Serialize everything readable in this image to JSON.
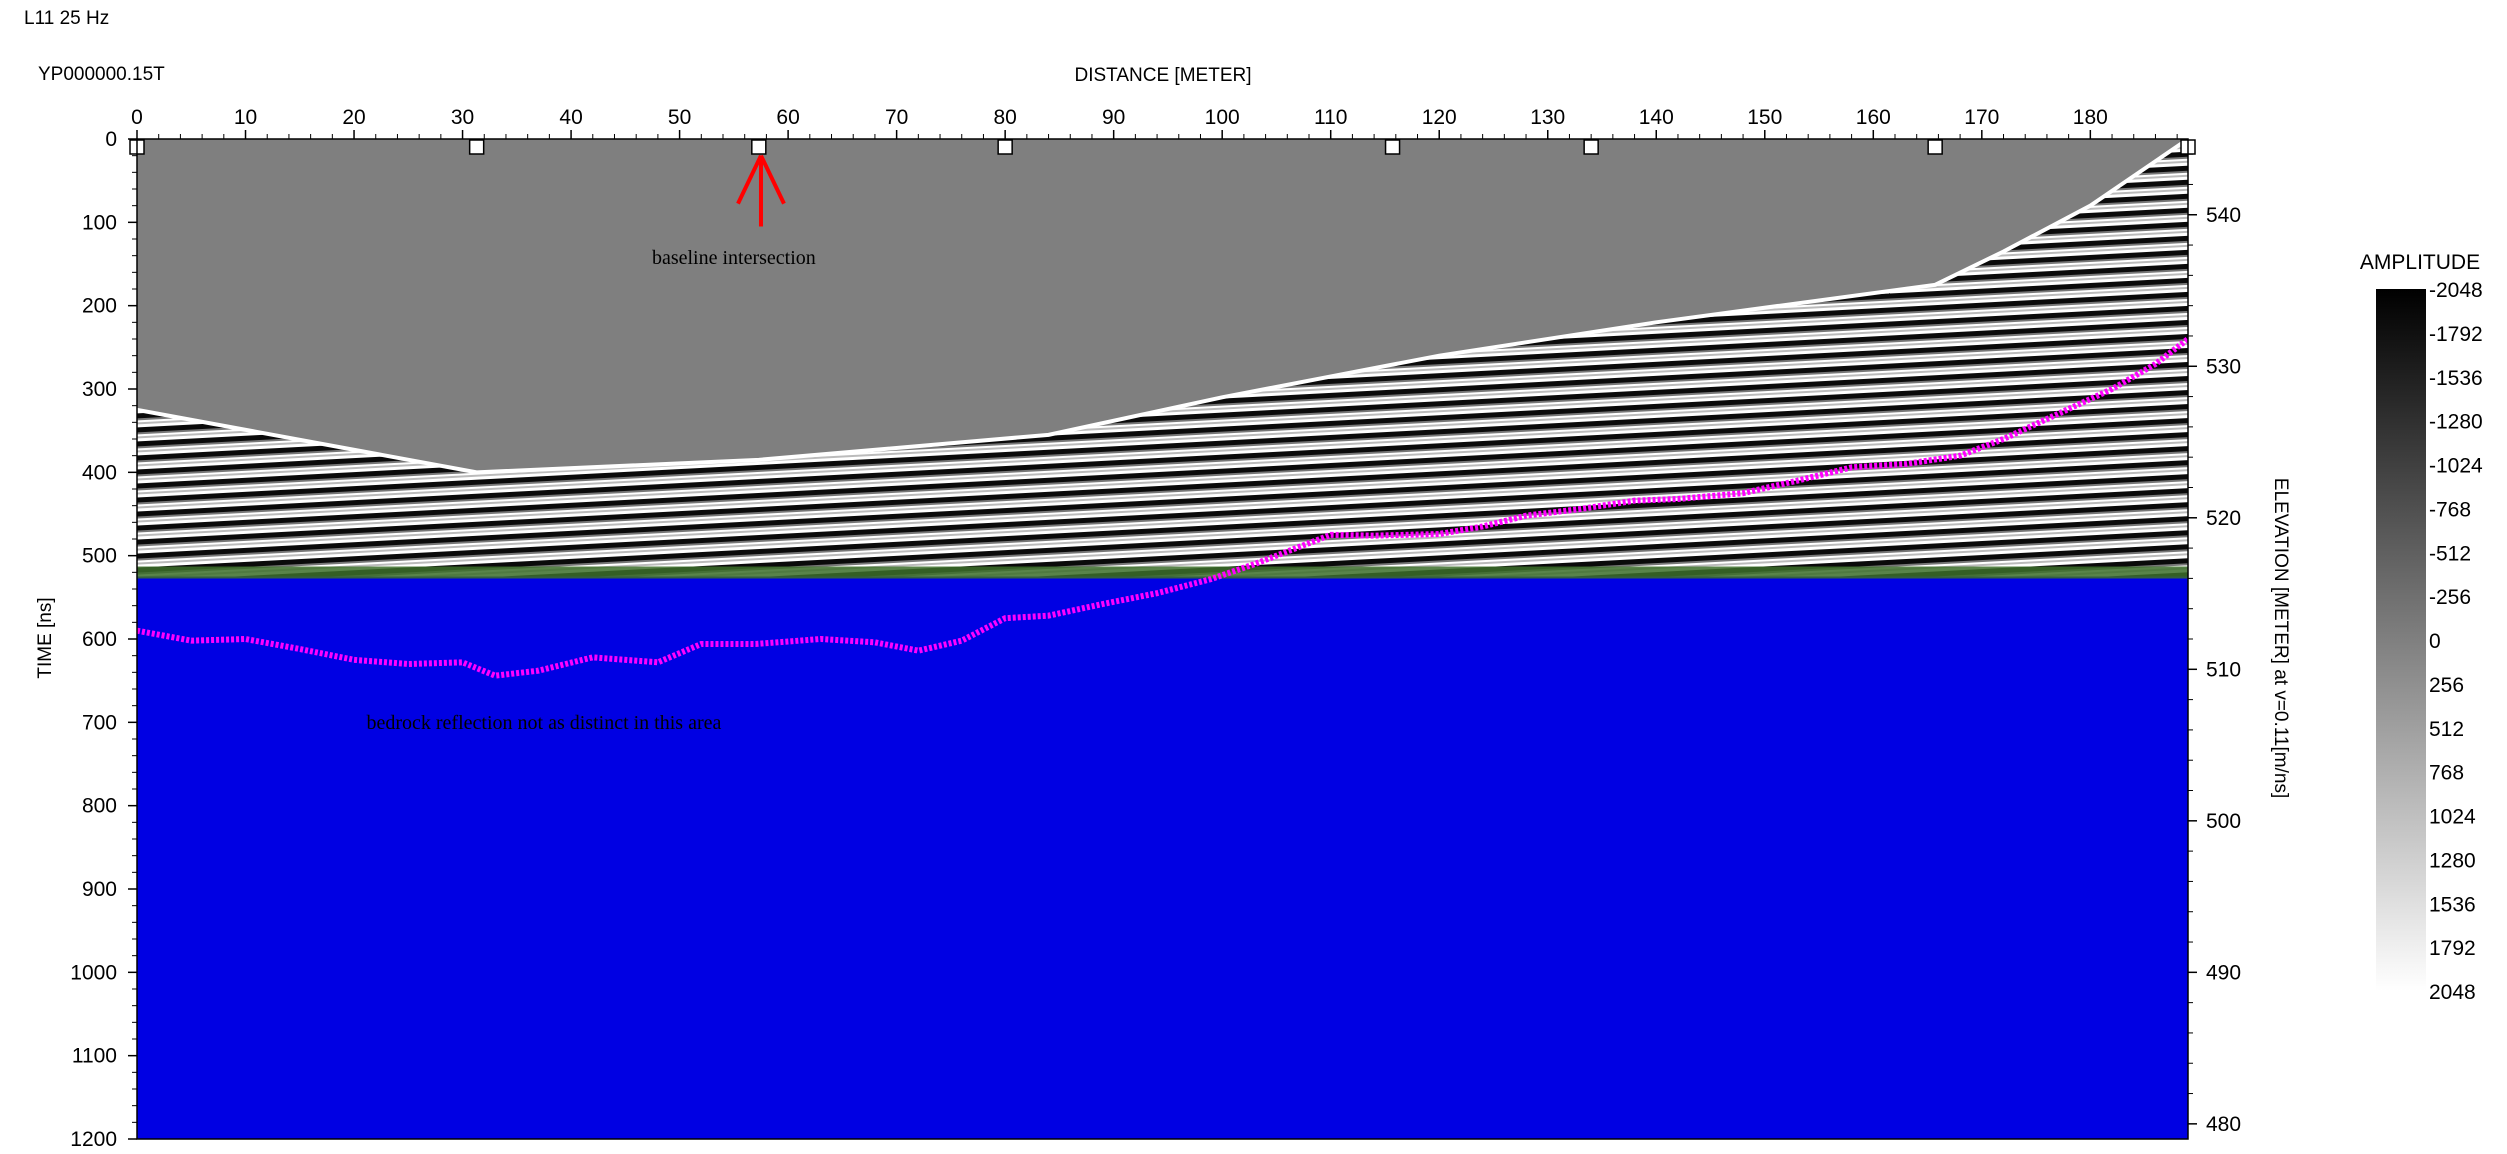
{
  "chart_data": {
    "type": "heatmap",
    "title": "L11 25 Hz",
    "file_label": "YP000000.15T",
    "xlabel": "DISTANCE [METER]",
    "ylabel": "TIME [ns]",
    "y2label": "ELEVATION [METER] at v=0.11[m/ns]",
    "xlim": [
      0,
      189
    ],
    "ylim": [
      0,
      1200
    ],
    "y2lim": [
      545,
      479
    ],
    "x_ticks": [
      0,
      10,
      20,
      30,
      40,
      50,
      60,
      70,
      80,
      90,
      100,
      110,
      120,
      130,
      140,
      150,
      160,
      170,
      180
    ],
    "y_ticks": [
      0,
      100,
      200,
      300,
      400,
      500,
      600,
      700,
      800,
      900,
      1000,
      1100,
      1200
    ],
    "y2_ticks": [
      540,
      530,
      520,
      510,
      500,
      490,
      480
    ],
    "markers_x": [
      0,
      31.3,
      57.3,
      80,
      115.7,
      134,
      165.7,
      189
    ],
    "surface_line": {
      "x": [
        0,
        31.3,
        57.3,
        84,
        100,
        120,
        140,
        165.7,
        172,
        180,
        189
      ],
      "y": [
        325,
        400,
        385,
        355,
        310,
        260,
        220,
        175,
        135,
        80,
        0
      ]
    },
    "data_cutoff_time": 525,
    "fill_color": "#0000e3",
    "top_fill_color": "#7f7f7f",
    "bedrock_pick": {
      "color": "#ff00ff",
      "x": [
        0,
        5,
        10,
        15,
        20,
        25,
        30,
        33,
        37,
        42,
        48,
        52,
        57,
        63,
        68,
        72,
        76,
        80,
        84,
        89,
        94,
        99,
        103,
        107,
        110,
        114,
        120,
        124,
        128,
        133,
        138,
        142,
        148,
        153,
        158,
        163,
        168,
        172,
        177,
        182,
        186,
        189
      ],
      "y": [
        590,
        602,
        600,
        612,
        625,
        630,
        628,
        644,
        638,
        622,
        628,
        606,
        606,
        600,
        604,
        614,
        602,
        575,
        572,
        558,
        545,
        528,
        510,
        490,
        475,
        476,
        474,
        465,
        452,
        444,
        434,
        432,
        425,
        410,
        394,
        390,
        380,
        360,
        330,
        300,
        270,
        240
      ]
    },
    "annotations": [
      {
        "text": "baseline intersection",
        "x": 55,
        "y": 150
      },
      {
        "text": "bedrock reflection not as distinct in this area",
        "x": 37.5,
        "y": 708
      }
    ],
    "arrow": {
      "x": 57.5,
      "y_tip": 20,
      "y_tail": 105,
      "color": "#ff0000"
    },
    "colorbar": {
      "title": "AMPLITUDE",
      "labels": [
        "-2048",
        "-1792",
        "-1536",
        "-1280",
        "-1024",
        "-768",
        "-512",
        "-256",
        "0",
        "256",
        "512",
        "768",
        "1024",
        "1280",
        "1536",
        "1792",
        "2048"
      ],
      "min_color": "#000000",
      "max_color": "#ffffff"
    }
  }
}
